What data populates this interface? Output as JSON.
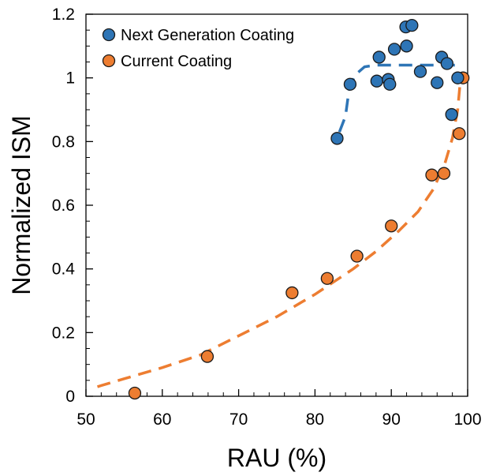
{
  "chart_data": {
    "type": "scatter",
    "title": "",
    "xlabel": "RAU (%)",
    "ylabel": "Normalized ISM",
    "xlim": [
      50,
      100
    ],
    "ylim": [
      0,
      1.2
    ],
    "x_ticks": [
      50,
      60,
      70,
      80,
      90,
      100
    ],
    "x_tick_labels": [
      "50",
      "60",
      "70",
      "80",
      "90",
      "100"
    ],
    "y_ticks": [
      0,
      0.2,
      0.4,
      0.6,
      0.8,
      1.0,
      1.2
    ],
    "y_tick_labels": [
      "0",
      "0.2",
      "0.4",
      "0.6",
      "0.8",
      "1",
      "1.2"
    ],
    "grid": false,
    "legend_position": "top-left",
    "series": [
      {
        "name": "Next Generation Coating",
        "color": "#2E75B6",
        "marker": "circle",
        "points": [
          {
            "x": 82.9,
            "y": 0.81
          },
          {
            "x": 84.6,
            "y": 0.98
          },
          {
            "x": 88.1,
            "y": 0.99
          },
          {
            "x": 88.4,
            "y": 1.065
          },
          {
            "x": 89.6,
            "y": 0.995
          },
          {
            "x": 89.8,
            "y": 0.98
          },
          {
            "x": 90.4,
            "y": 1.09
          },
          {
            "x": 91.9,
            "y": 1.16
          },
          {
            "x": 92.0,
            "y": 1.1
          },
          {
            "x": 92.7,
            "y": 1.165
          },
          {
            "x": 93.8,
            "y": 1.02
          },
          {
            "x": 96.0,
            "y": 0.985
          },
          {
            "x": 96.6,
            "y": 1.065
          },
          {
            "x": 97.3,
            "y": 1.045
          },
          {
            "x": 97.9,
            "y": 0.885
          },
          {
            "x": 98.7,
            "y": 1.0
          }
        ],
        "trend": [
          {
            "x": 83.2,
            "y": 0.83
          },
          {
            "x": 84.0,
            "y": 0.88
          },
          {
            "x": 84.5,
            "y": 0.97
          },
          {
            "x": 85.3,
            "y": 1.01
          },
          {
            "x": 86.5,
            "y": 1.035
          },
          {
            "x": 88.0,
            "y": 1.04
          },
          {
            "x": 92.0,
            "y": 1.04
          },
          {
            "x": 97.0,
            "y": 1.04
          },
          {
            "x": 98.4,
            "y": 1.04
          }
        ]
      },
      {
        "name": "Current Coating",
        "color": "#ED7D31",
        "marker": "circle",
        "points": [
          {
            "x": 56.4,
            "y": 0.01
          },
          {
            "x": 65.9,
            "y": 0.125
          },
          {
            "x": 77.0,
            "y": 0.325
          },
          {
            "x": 81.6,
            "y": 0.37
          },
          {
            "x": 85.5,
            "y": 0.44
          },
          {
            "x": 90.0,
            "y": 0.535
          },
          {
            "x": 95.3,
            "y": 0.695
          },
          {
            "x": 96.9,
            "y": 0.7
          },
          {
            "x": 98.9,
            "y": 0.825
          },
          {
            "x": 99.4,
            "y": 1.0
          }
        ],
        "trend": [
          {
            "x": 51.5,
            "y": 0.03
          },
          {
            "x": 55.0,
            "y": 0.055
          },
          {
            "x": 60.0,
            "y": 0.09
          },
          {
            "x": 65.0,
            "y": 0.13
          },
          {
            "x": 70.0,
            "y": 0.19
          },
          {
            "x": 75.0,
            "y": 0.25
          },
          {
            "x": 80.0,
            "y": 0.32
          },
          {
            "x": 85.0,
            "y": 0.4
          },
          {
            "x": 88.0,
            "y": 0.455
          },
          {
            "x": 91.0,
            "y": 0.52
          },
          {
            "x": 93.5,
            "y": 0.58
          },
          {
            "x": 95.5,
            "y": 0.65
          },
          {
            "x": 97.0,
            "y": 0.73
          },
          {
            "x": 98.0,
            "y": 0.81
          },
          {
            "x": 98.7,
            "y": 0.9
          },
          {
            "x": 99.0,
            "y": 0.98
          }
        ]
      }
    ]
  }
}
